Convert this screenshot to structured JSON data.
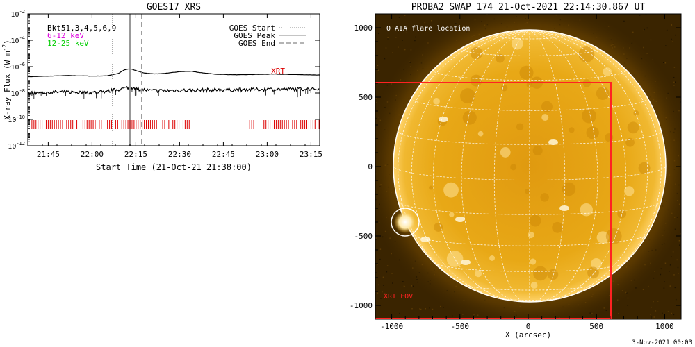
{
  "colors": {
    "xrt_red": "#dd0000",
    "fov_red": "#ff2222",
    "magenta": "#dd00dd",
    "green": "#00cc00",
    "gray": "#999999",
    "sun_orange": "#e8a410",
    "sun_bg": "#3a2400"
  },
  "chart_data": [
    {
      "type": "line",
      "title": "GOES17 XRS",
      "xlabel": "Start Time (21-Oct-21 21:38:00)",
      "ylabel": "X-ray Flux (W m",
      "ylabel_sup": "-2",
      "ylabel_close": ")",
      "scale": "log-y",
      "xlim": [
        "21:38",
        "23:18"
      ],
      "ylim": [
        1e-12,
        0.01
      ],
      "x_ticks": [
        "21:45",
        "22:00",
        "22:15",
        "22:30",
        "22:45",
        "23:00",
        "23:15"
      ],
      "y_ticks": [
        {
          "base": "10",
          "exp": "-2",
          "value": 0.01
        },
        {
          "base": "10",
          "exp": "-4",
          "value": 0.0001
        },
        {
          "base": "10",
          "exp": "-6",
          "value": 1e-06
        },
        {
          "base": "10",
          "exp": "-8",
          "value": 1e-08
        },
        {
          "base": "10",
          "exp": "-10",
          "value": 1e-10
        },
        {
          "base": "10",
          "exp": "-12",
          "value": 1e-12
        }
      ],
      "legend_left": [
        {
          "label": "Bkt51,3,4,5,6,9",
          "color": "#000000"
        },
        {
          "label": "6-12 keV",
          "color": "#dd00dd"
        },
        {
          "label": "12-25 keV",
          "color": "#00cc00"
        }
      ],
      "legend_right": [
        {
          "label": "GOES Start",
          "style": "dotted"
        },
        {
          "label": "GOES Peak",
          "style": "solid"
        },
        {
          "label": "GOES End",
          "style": "dashed"
        }
      ],
      "events": {
        "start": "22:07",
        "peak": "22:13",
        "end": "22:17"
      },
      "xrt_label": "XRT",
      "xrt_coverage": [
        [
          "21:38",
          "22:34"
        ],
        [
          "22:54",
          "23:18"
        ]
      ],
      "series": [
        {
          "name": "",
          "color": "#000000",
          "x": [
            "21:38",
            "21:45",
            "21:52",
            "22:00",
            "22:05",
            "22:09",
            "22:11",
            "22:13",
            "22:15",
            "22:18",
            "22:22",
            "22:26",
            "22:30",
            "22:34",
            "22:38",
            "22:42",
            "22:46",
            "22:50",
            "22:54",
            "22:58",
            "23:02",
            "23:06",
            "23:10",
            "23:14",
            "23:18"
          ],
          "y": [
            1.7e-07,
            1.9e-07,
            2.1e-07,
            1.9e-07,
            2e-07,
            3e-07,
            5.5e-07,
            7e-07,
            5e-07,
            3.2e-07,
            2.8e-07,
            3.2e-07,
            4.2e-07,
            4.4e-07,
            3.3e-07,
            2.7e-07,
            2.5e-07,
            2.4e-07,
            2.5e-07,
            2.6e-07,
            2.7e-07,
            2.6e-07,
            2.5e-07,
            2.4e-07,
            2.3e-07
          ]
        },
        {
          "name": "",
          "color": "#000000",
          "style": "noisy",
          "x": [
            "21:38",
            "21:50",
            "22:00",
            "22:06",
            "22:10",
            "22:13",
            "22:16",
            "22:20",
            "22:25",
            "22:30",
            "22:40",
            "22:50",
            "23:00",
            "23:10",
            "23:18"
          ],
          "y": [
            1e-08,
            1.2e-08,
            1.1e-08,
            1.4e-08,
            2e-08,
            2.8e-08,
            2e-08,
            1.5e-08,
            1.5e-08,
            1.6e-08,
            1.7e-08,
            1.8e-08,
            1.9e-08,
            2e-08,
            2e-08
          ]
        }
      ]
    },
    {
      "type": "image",
      "title": "PROBA2 SWAP 174 21-Oct-2021 22:14:30.867 UT",
      "xlabel": "X (arcsec)",
      "ylabel": "",
      "xlim": [
        -1120,
        1120
      ],
      "ylim": [
        -1100,
        1100
      ],
      "x_ticks": [
        -1000,
        -500,
        0,
        500,
        1000
      ],
      "y_ticks": [
        1000,
        500,
        0,
        -500,
        -1000
      ],
      "solar_radius": 962,
      "legend": "O AIA flare location",
      "flare_location": [
        -880,
        -400
      ],
      "xrt_fov_label": "XRT FOV",
      "xrt_fov_box": {
        "x": [
          -1110,
          590
        ],
        "y": [
          -1100,
          600
        ]
      }
    }
  ],
  "footer": {
    "timestamp": "3-Nov-2021 00:03"
  }
}
